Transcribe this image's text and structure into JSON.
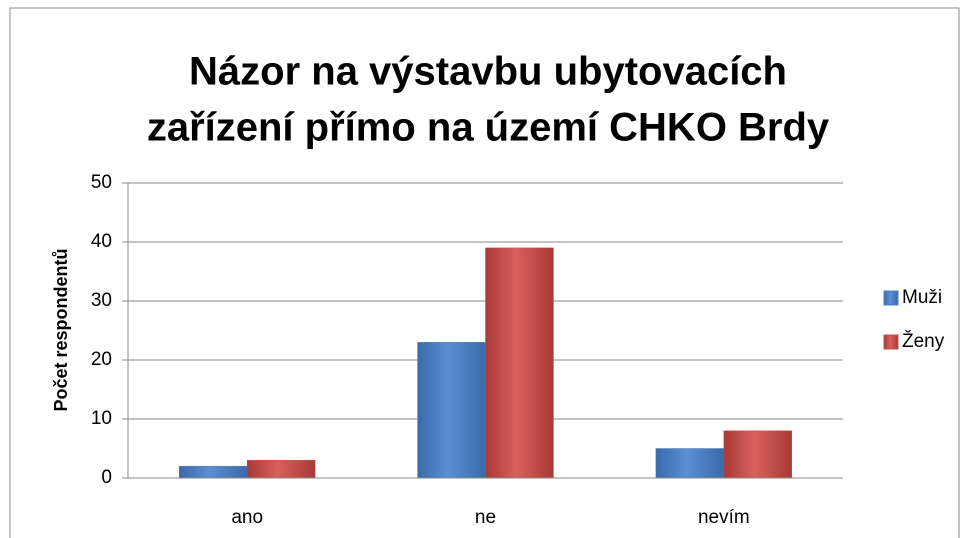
{
  "chart_data": {
    "type": "bar",
    "title": [
      "Názor na výstavbu ubytovacích",
      "zařízení přímo na území CHKO Brdy"
    ],
    "y_label": "Počet respondentů",
    "categories": [
      "ano",
      "ne",
      "nevím"
    ],
    "series": [
      {
        "name": "Muži",
        "color": "#4f81bd",
        "values": [
          2,
          23,
          5
        ]
      },
      {
        "name": "Ženy",
        "color": "#c0504d",
        "values": [
          3,
          39,
          8
        ]
      }
    ],
    "ylim": [
      0,
      50
    ],
    "yticks": [
      0,
      10,
      20,
      30,
      40,
      50
    ],
    "grid": true,
    "legend": "right"
  }
}
